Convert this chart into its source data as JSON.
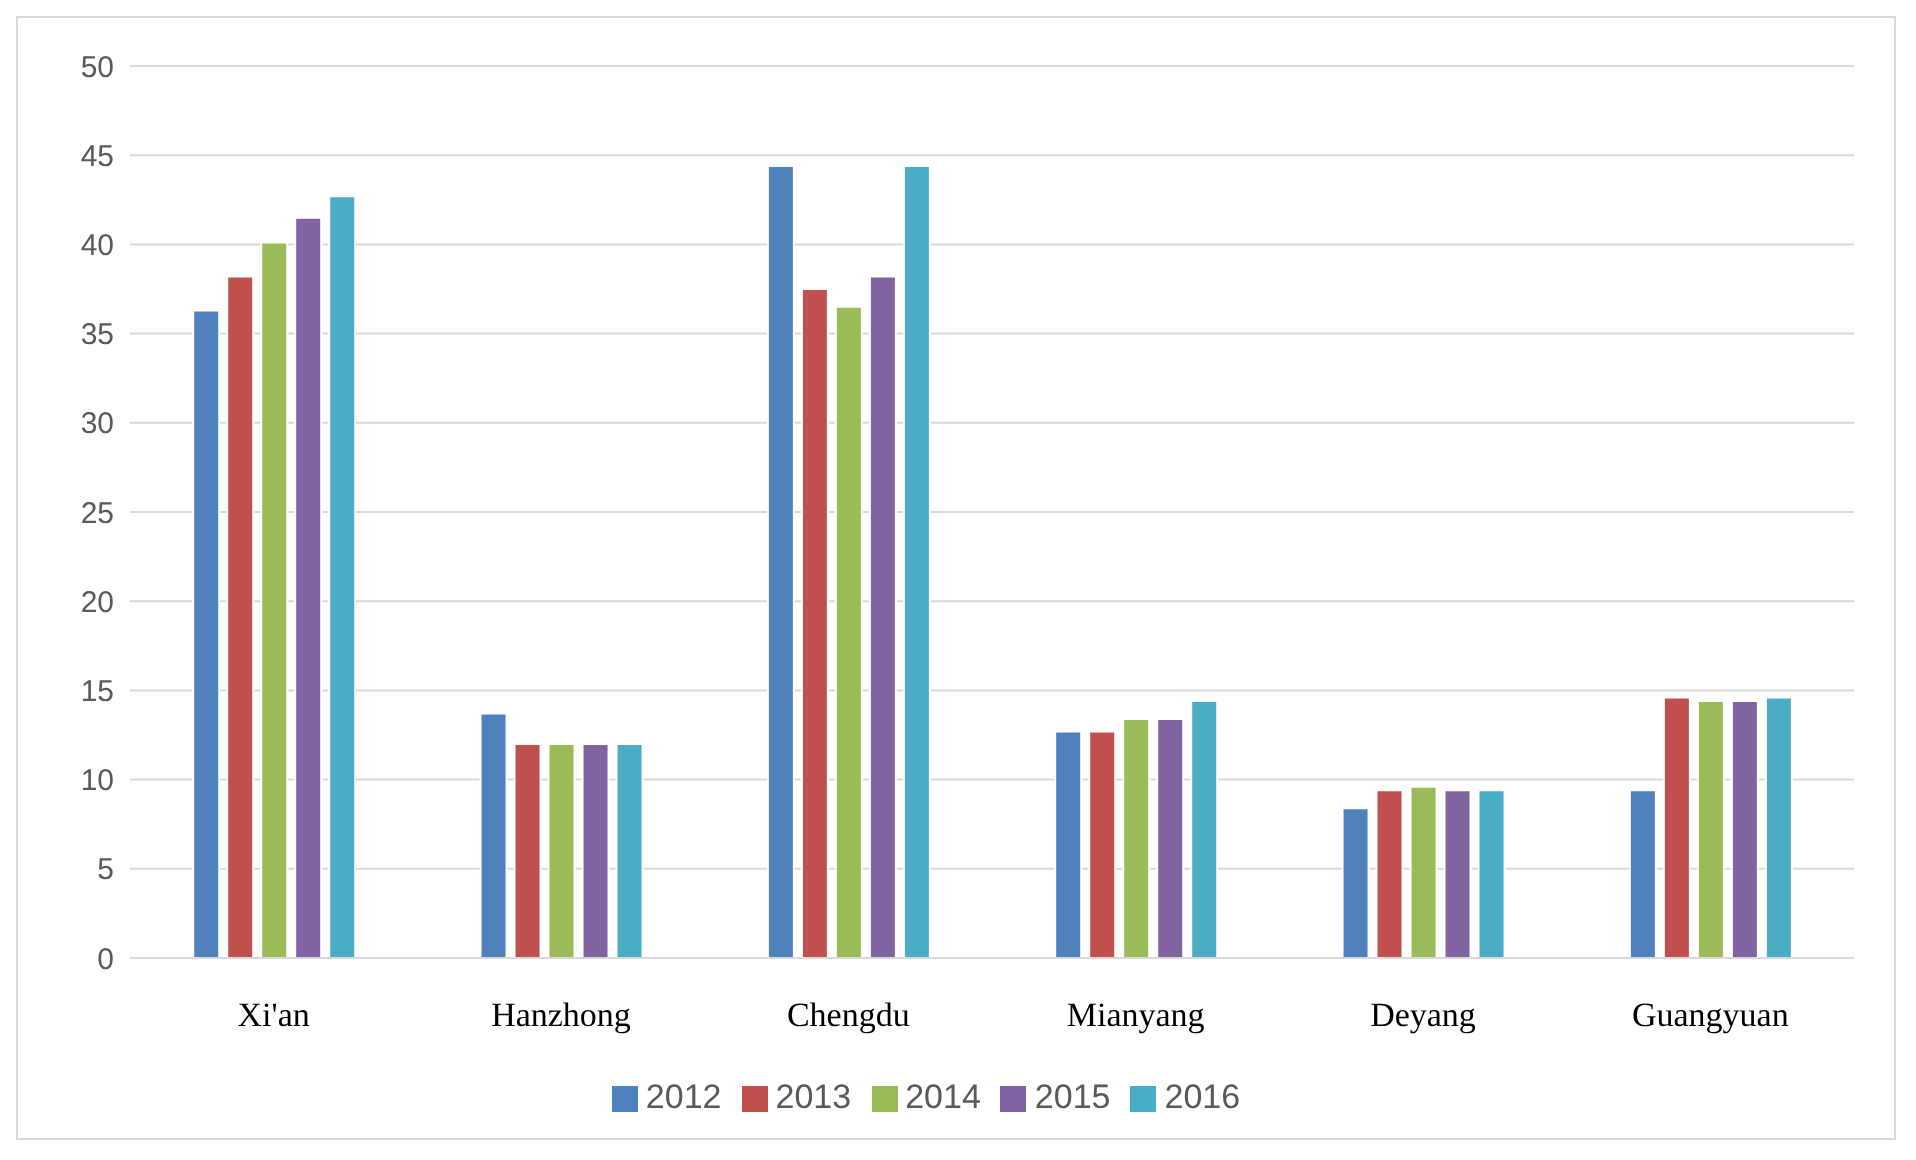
{
  "chart_data": {
    "type": "bar",
    "categories": [
      "Xi'an",
      "Hanzhong",
      "Chengdu",
      "Mianyang",
      "Deyang",
      "Guangyuan"
    ],
    "series": [
      {
        "name": "2012",
        "color": "#4f81bd",
        "values": [
          36.3,
          13.7,
          44.4,
          12.7,
          8.4,
          9.4
        ]
      },
      {
        "name": "2013",
        "color": "#c0504d",
        "values": [
          38.2,
          12,
          37.5,
          12.7,
          9.4,
          14.6
        ]
      },
      {
        "name": "2014",
        "color": "#9bbb59",
        "values": [
          40.1,
          12,
          36.5,
          13.4,
          9.6,
          14.4
        ]
      },
      {
        "name": "2015",
        "color": "#8064a2",
        "values": [
          41.5,
          12,
          38.2,
          13.4,
          9.4,
          14.4
        ]
      },
      {
        "name": "2016",
        "color": "#4bacc6",
        "values": [
          42.7,
          12,
          44.4,
          14.4,
          9.4,
          14.6
        ]
      }
    ],
    "ylim": [
      0,
      50
    ],
    "yticks": [
      0,
      5,
      10,
      15,
      20,
      25,
      30,
      35,
      40,
      45,
      50
    ],
    "grid": "y",
    "legend": "bottom"
  }
}
